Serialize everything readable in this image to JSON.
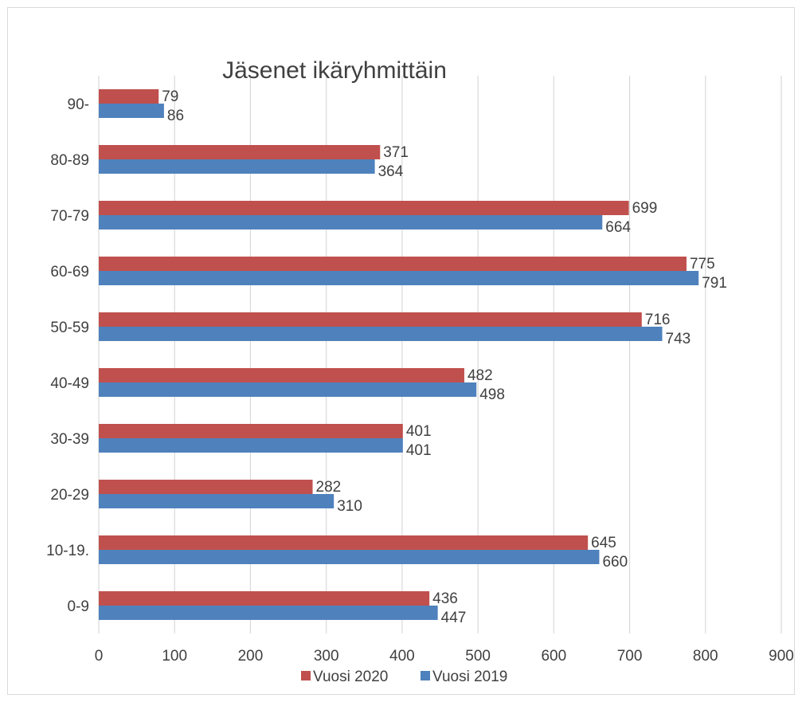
{
  "chart_data": {
    "type": "bar",
    "orientation": "horizontal",
    "title": "Jäsenet ikäryhmittäin",
    "xlabel": "",
    "ylabel": "",
    "xlim": [
      0,
      900
    ],
    "x_ticks": [
      "0",
      "100",
      "200",
      "300",
      "400",
      "500",
      "600",
      "700",
      "800",
      "900"
    ],
    "grid": "vertical",
    "legend_position": "bottom",
    "categories": [
      "0-9",
      "10-19.",
      "20-29",
      "30-39",
      "40-49",
      "50-59",
      "60-69",
      "70-79",
      "80-89",
      "90-"
    ],
    "series": [
      {
        "name": "Vuosi 2020",
        "color": "#c0504d",
        "values": [
          436,
          645,
          282,
          401,
          482,
          716,
          775,
          699,
          371,
          79
        ]
      },
      {
        "name": "Vuosi 2019",
        "color": "#4f81bd",
        "values": [
          447,
          660,
          310,
          401,
          498,
          743,
          791,
          664,
          364,
          86
        ]
      }
    ],
    "data_labels": true
  }
}
